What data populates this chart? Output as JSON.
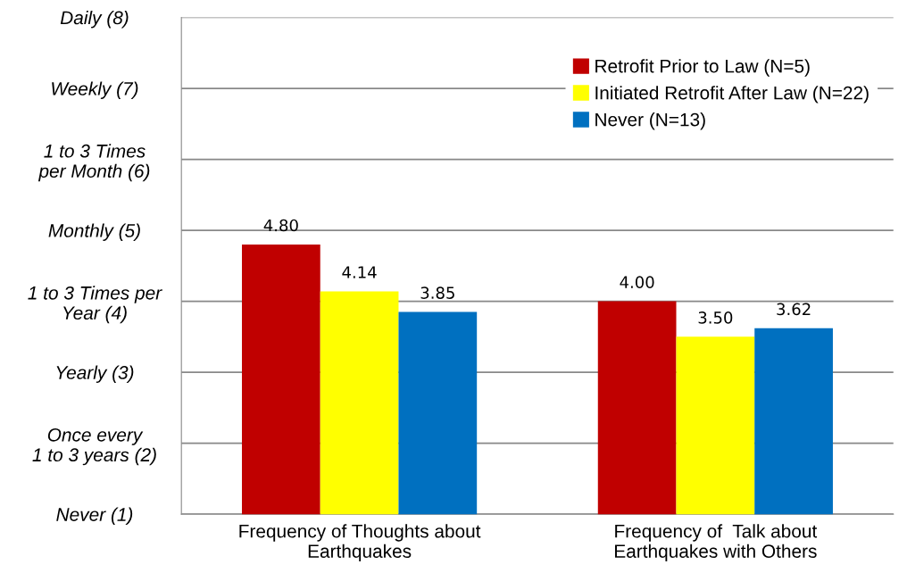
{
  "chart_data": {
    "type": "bar",
    "categories": [
      "Frequency of Thoughts about\nEarthquakes",
      "Frequency of  Talk about\nEarthquakes with Others"
    ],
    "series": [
      {
        "name": "Retrofit Prior to Law (N=5)",
        "color": "#c00000",
        "values": [
          4.8,
          4.0
        ],
        "value_labels": [
          "4.80",
          "4.00"
        ]
      },
      {
        "name": "Initiated Retrofit After Law (N=22)",
        "color": "#ffff00",
        "values": [
          4.14,
          3.5
        ],
        "value_labels": [
          "4.14",
          "3.50"
        ]
      },
      {
        "name": "Never (N=13)",
        "color": "#0070c0",
        "values": [
          3.85,
          3.62
        ],
        "value_labels": [
          "3.85",
          "3.62"
        ]
      }
    ],
    "ylim": [
      1,
      8
    ],
    "yticks": [
      {
        "value": 1,
        "label": "Never (1)"
      },
      {
        "value": 2,
        "label": "Once every\n1 to 3 years (2)"
      },
      {
        "value": 3,
        "label": "Yearly (3)"
      },
      {
        "value": 4,
        "label": "1 to 3 Times per\nYear (4)"
      },
      {
        "value": 5,
        "label": "Monthly (5)"
      },
      {
        "value": 6,
        "label": "1 to 3 Times\nper Month (6)"
      },
      {
        "value": 7,
        "label": "Weekly (7)"
      },
      {
        "value": 8,
        "label": "Daily (8)"
      }
    ],
    "grid": "y",
    "legend": "top right"
  }
}
